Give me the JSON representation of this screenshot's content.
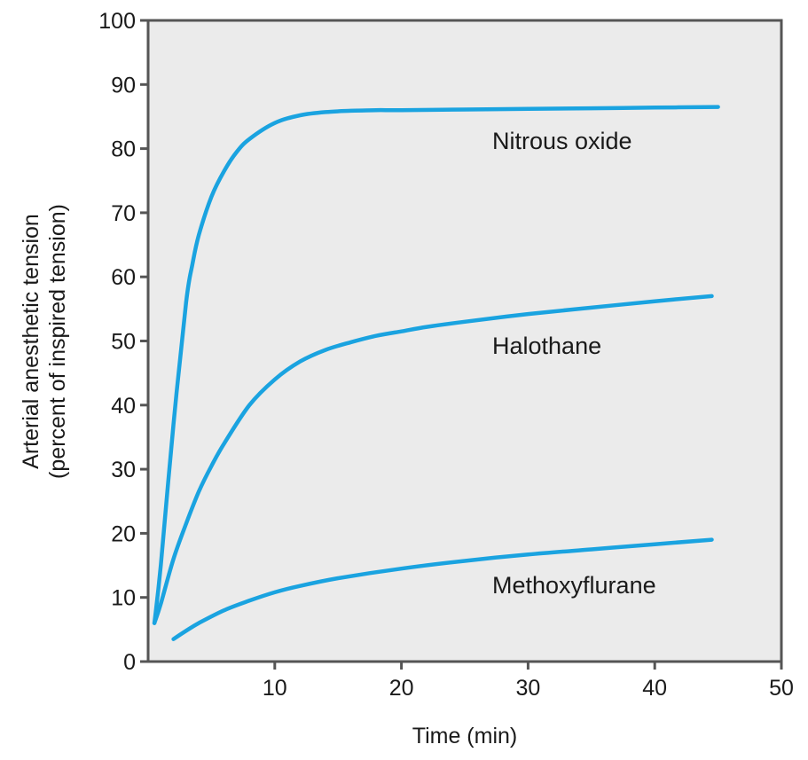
{
  "chart_data": {
    "type": "line",
    "title": "",
    "xlabel": "Time (min)",
    "ylabel_lines": [
      "Arterial anesthetic tension",
      "(percent of inspired tension)"
    ],
    "xlim": [
      0,
      50
    ],
    "ylim": [
      0,
      100
    ],
    "x_ticks": [
      10,
      20,
      30,
      40,
      50
    ],
    "y_ticks": [
      0,
      10,
      20,
      30,
      40,
      50,
      60,
      70,
      80,
      90,
      100
    ],
    "grid": false,
    "legend": "none (series labeled inline)",
    "colors": {
      "line": "#1aa3e0",
      "plot_background": "#ebebeb",
      "frame": "#555555"
    },
    "series": [
      {
        "name": "Nitrous oxide",
        "x": [
          0.5,
          1,
          2,
          3,
          3.5,
          4,
          5,
          6,
          7,
          8,
          10,
          12,
          14,
          16,
          18,
          20,
          25,
          30,
          35,
          40,
          45
        ],
        "y": [
          6,
          15,
          37,
          56,
          62,
          66.5,
          72.5,
          76.5,
          79.5,
          81.5,
          84,
          85.2,
          85.7,
          85.9,
          86,
          86,
          86.1,
          86.2,
          86.3,
          86.4,
          86.5
        ]
      },
      {
        "name": "Halothane",
        "x": [
          0.5,
          1,
          2,
          3,
          4,
          5,
          6,
          8,
          10,
          12,
          14,
          16,
          18,
          20,
          22,
          25,
          30,
          35,
          40,
          44.5
        ],
        "y": [
          6,
          9,
          16,
          21.5,
          26.5,
          30.5,
          34,
          40,
          44,
          46.8,
          48.6,
          49.8,
          50.8,
          51.5,
          52.2,
          53,
          54.2,
          55.2,
          56.2,
          57
        ]
      },
      {
        "name": "Methoxyflurane",
        "x": [
          2,
          3,
          4,
          6,
          8,
          10,
          12,
          15,
          20,
          25,
          30,
          35,
          40,
          44.5
        ],
        "y": [
          3.5,
          4.8,
          6,
          8,
          9.5,
          10.8,
          11.8,
          13,
          14.5,
          15.7,
          16.7,
          17.5,
          18.3,
          19
        ]
      }
    ]
  }
}
